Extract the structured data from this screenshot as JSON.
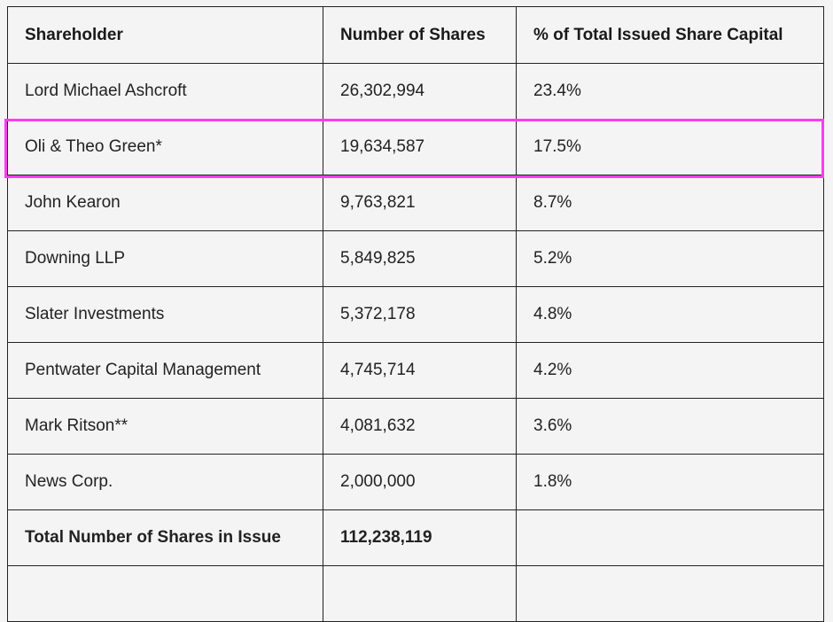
{
  "table": {
    "headers": [
      "Shareholder",
      "Number of Shares",
      "% of Total Issued Share Capital"
    ],
    "rows": [
      [
        "Lord Michael Ashcroft",
        "26,302,994",
        "23.4%"
      ],
      [
        "Oli & Theo Green*",
        "19,634,587",
        "17.5%"
      ],
      [
        "John Kearon",
        "9,763,821",
        "8.7%"
      ],
      [
        "Downing LLP",
        "5,849,825",
        "5.2%"
      ],
      [
        "Slater Investments",
        "5,372,178",
        "4.8%"
      ],
      [
        "Pentwater Capital Management",
        "4,745,714",
        "4.2%"
      ],
      [
        "Mark Ritson**",
        "4,081,632",
        "3.6%"
      ],
      [
        "News Corp.",
        "2,000,000",
        "1.8%"
      ]
    ],
    "total": [
      "Total Number of Shares in Issue",
      "112,238,119",
      ""
    ]
  },
  "highlight": {
    "row_index": 1,
    "color": "#ff3cf0"
  }
}
